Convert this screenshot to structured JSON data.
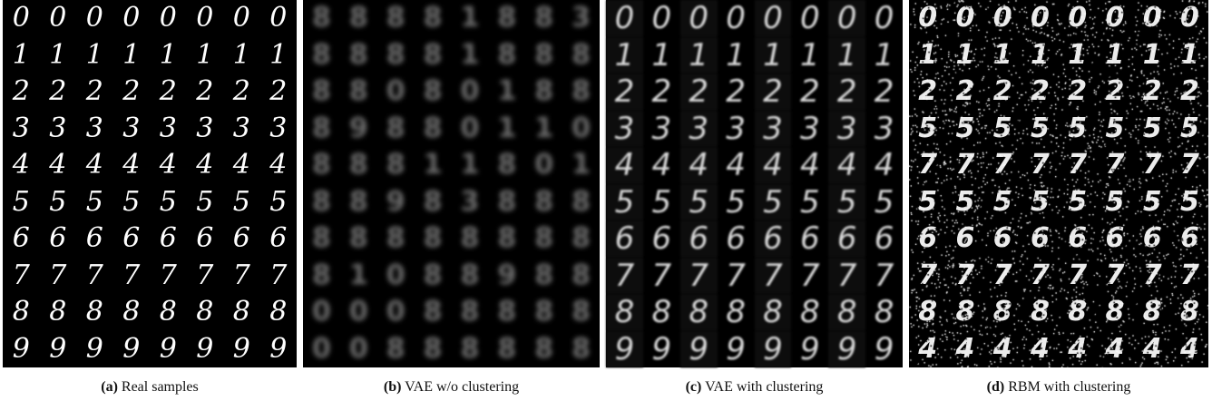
{
  "panels": [
    {
      "label": "(a)",
      "caption": "Real samples",
      "rows": [
        [
          "0",
          "0",
          "0",
          "0",
          "0",
          "0",
          "0",
          "0"
        ],
        [
          "1",
          "1",
          "1",
          "1",
          "1",
          "1",
          "1",
          "1"
        ],
        [
          "2",
          "2",
          "2",
          "2",
          "2",
          "2",
          "2",
          "2"
        ],
        [
          "3",
          "3",
          "3",
          "3",
          "3",
          "3",
          "3",
          "3"
        ],
        [
          "4",
          "4",
          "4",
          "4",
          "4",
          "4",
          "4",
          "4"
        ],
        [
          "5",
          "5",
          "5",
          "5",
          "5",
          "5",
          "5",
          "5"
        ],
        [
          "6",
          "6",
          "6",
          "6",
          "6",
          "6",
          "6",
          "6"
        ],
        [
          "7",
          "7",
          "7",
          "7",
          "7",
          "7",
          "7",
          "7"
        ],
        [
          "8",
          "8",
          "8",
          "8",
          "8",
          "8",
          "8",
          "8"
        ],
        [
          "9",
          "9",
          "9",
          "9",
          "9",
          "9",
          "9",
          "9"
        ]
      ]
    },
    {
      "label": "(b)",
      "caption": "VAE w/o clustering",
      "rows": [
        [
          "8",
          "8",
          "8",
          "8",
          "1",
          "8",
          "8",
          "3"
        ],
        [
          "8",
          "8",
          "8",
          "8",
          "1",
          "8",
          "8",
          "8"
        ],
        [
          "8",
          "8",
          "0",
          "8",
          "0",
          "1",
          "8",
          "8"
        ],
        [
          "8",
          "9",
          "8",
          "8",
          "0",
          "1",
          "1",
          "0"
        ],
        [
          "8",
          "8",
          "8",
          "1",
          "1",
          "8",
          "0",
          "1"
        ],
        [
          "8",
          "8",
          "9",
          "8",
          "3",
          "8",
          "8",
          "8"
        ],
        [
          "8",
          "8",
          "8",
          "8",
          "8",
          "8",
          "8",
          "8"
        ],
        [
          "8",
          "1",
          "0",
          "8",
          "8",
          "9",
          "8",
          "8"
        ],
        [
          "0",
          "0",
          "0",
          "8",
          "8",
          "8",
          "8",
          "8"
        ],
        [
          "0",
          "0",
          "8",
          "8",
          "8",
          "8",
          "8",
          "8"
        ]
      ]
    },
    {
      "label": "(c)",
      "caption": "VAE with clustering",
      "rows": [
        [
          "0",
          "0",
          "0",
          "0",
          "0",
          "0",
          "0",
          "0"
        ],
        [
          "1",
          "1",
          "1",
          "1",
          "1",
          "1",
          "1",
          "1"
        ],
        [
          "2",
          "2",
          "2",
          "2",
          "2",
          "2",
          "2",
          "2"
        ],
        [
          "3",
          "3",
          "3",
          "3",
          "3",
          "3",
          "3",
          "3"
        ],
        [
          "4",
          "4",
          "4",
          "4",
          "4",
          "4",
          "4",
          "4"
        ],
        [
          "5",
          "5",
          "5",
          "5",
          "5",
          "5",
          "5",
          "5"
        ],
        [
          "6",
          "6",
          "6",
          "6",
          "6",
          "6",
          "6",
          "6"
        ],
        [
          "7",
          "7",
          "7",
          "7",
          "7",
          "7",
          "7",
          "7"
        ],
        [
          "8",
          "8",
          "8",
          "8",
          "8",
          "8",
          "8",
          "8"
        ],
        [
          "9",
          "9",
          "9",
          "9",
          "9",
          "9",
          "9",
          "9"
        ]
      ]
    },
    {
      "label": "(d)",
      "caption": "RBM with clustering",
      "rows": [
        [
          "0",
          "0",
          "0",
          "0",
          "0",
          "0",
          "0",
          "0"
        ],
        [
          "1",
          "1",
          "1",
          "1",
          "1",
          "1",
          "1",
          "1"
        ],
        [
          "2",
          "2",
          "2",
          "2",
          "2",
          "2",
          "2",
          "2"
        ],
        [
          "5",
          "5",
          "5",
          "5",
          "5",
          "5",
          "5",
          "5"
        ],
        [
          "7",
          "7",
          "7",
          "7",
          "7",
          "7",
          "7",
          "7"
        ],
        [
          "5",
          "5",
          "5",
          "5",
          "5",
          "5",
          "5",
          "5"
        ],
        [
          "6",
          "6",
          "6",
          "6",
          "6",
          "6",
          "6",
          "6"
        ],
        [
          "7",
          "7",
          "7",
          "7",
          "7",
          "7",
          "7",
          "7"
        ],
        [
          "8",
          "8",
          "8",
          "8",
          "8",
          "8",
          "8",
          "8"
        ],
        [
          "4",
          "4",
          "4",
          "4",
          "4",
          "4",
          "4",
          "4"
        ]
      ]
    }
  ]
}
